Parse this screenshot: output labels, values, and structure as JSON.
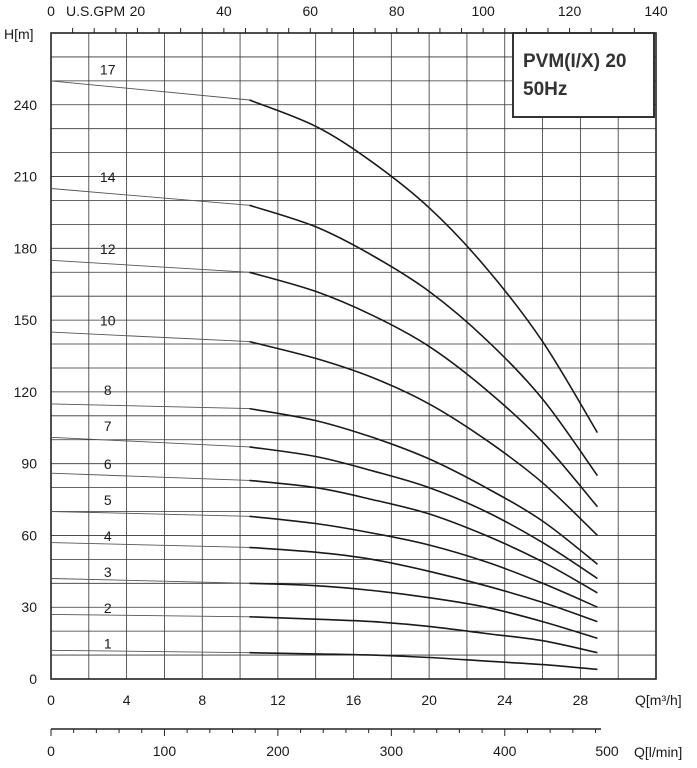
{
  "chart_data": {
    "type": "line",
    "title_box": {
      "line1": "PVM(I/X) 20",
      "line2": "50Hz"
    },
    "y_axis": {
      "label": "H[m]",
      "ticks": [
        0,
        30,
        60,
        90,
        120,
        150,
        180,
        210,
        240
      ],
      "range": [
        0,
        270
      ]
    },
    "x_axis": {
      "label": "Q[m³/h]",
      "ticks": [
        0,
        4,
        8,
        12,
        16,
        20,
        24,
        28
      ],
      "range": [
        0,
        32
      ]
    },
    "top_axis": {
      "label": "U.S.GPM",
      "ticks": [
        20,
        40,
        60,
        80,
        100,
        120,
        140
      ],
      "range": [
        0,
        140
      ]
    },
    "bottom_axis": {
      "label": "Q[l/min]",
      "ticks": [
        0,
        100,
        200,
        300,
        400,
        500
      ],
      "range": [
        0,
        533.3
      ]
    },
    "series": [
      {
        "name": "17",
        "thin": [
          [
            0,
            250
          ],
          [
            10.5,
            242
          ]
        ],
        "bold": [
          [
            10.5,
            242
          ],
          [
            14,
            231
          ],
          [
            17,
            216
          ],
          [
            20,
            197
          ],
          [
            23,
            172
          ],
          [
            26,
            141
          ],
          [
            28.9,
            103
          ]
        ]
      },
      {
        "name": "14",
        "thin": [
          [
            0,
            205
          ],
          [
            10.5,
            198
          ]
        ],
        "bold": [
          [
            10.5,
            198
          ],
          [
            14,
            189
          ],
          [
            17,
            177
          ],
          [
            20,
            162
          ],
          [
            23,
            142
          ],
          [
            26,
            117
          ],
          [
            28.9,
            85
          ]
        ]
      },
      {
        "name": "12",
        "thin": [
          [
            0,
            175
          ],
          [
            10.5,
            170
          ]
        ],
        "bold": [
          [
            10.5,
            170
          ],
          [
            14,
            162
          ],
          [
            17,
            152
          ],
          [
            20,
            139
          ],
          [
            23,
            121
          ],
          [
            26,
            99
          ],
          [
            28.9,
            72
          ]
        ]
      },
      {
        "name": "10",
        "thin": [
          [
            0,
            145
          ],
          [
            10.5,
            141
          ]
        ],
        "bold": [
          [
            10.5,
            141
          ],
          [
            14,
            134
          ],
          [
            17,
            126
          ],
          [
            20,
            115
          ],
          [
            23,
            100
          ],
          [
            26,
            82
          ],
          [
            28.9,
            60
          ]
        ]
      },
      {
        "name": "8",
        "thin": [
          [
            0,
            115
          ],
          [
            10.5,
            113
          ]
        ],
        "bold": [
          [
            10.5,
            113
          ],
          [
            14,
            108
          ],
          [
            17,
            101
          ],
          [
            20,
            92
          ],
          [
            23,
            80
          ],
          [
            26,
            66
          ],
          [
            28.9,
            48
          ]
        ]
      },
      {
        "name": "7",
        "thin": [
          [
            0,
            101
          ],
          [
            10.5,
            97
          ]
        ],
        "bold": [
          [
            10.5,
            97
          ],
          [
            14,
            93
          ],
          [
            17,
            87
          ],
          [
            20,
            80
          ],
          [
            23,
            70
          ],
          [
            26,
            57
          ],
          [
            28.9,
            42
          ]
        ]
      },
      {
        "name": "6",
        "thin": [
          [
            0,
            86
          ],
          [
            10.5,
            83
          ]
        ],
        "bold": [
          [
            10.5,
            83
          ],
          [
            14,
            80
          ],
          [
            17,
            75
          ],
          [
            20,
            69
          ],
          [
            23,
            60
          ],
          [
            26,
            49
          ],
          [
            28.9,
            36
          ]
        ]
      },
      {
        "name": "5",
        "thin": [
          [
            0,
            70
          ],
          [
            10.5,
            68
          ]
        ],
        "bold": [
          [
            10.5,
            68
          ],
          [
            14,
            65
          ],
          [
            17,
            61
          ],
          [
            20,
            56
          ],
          [
            23,
            49
          ],
          [
            26,
            40
          ],
          [
            28.9,
            30
          ]
        ]
      },
      {
        "name": "4",
        "thin": [
          [
            0,
            57
          ],
          [
            10.5,
            55
          ]
        ],
        "bold": [
          [
            10.5,
            55
          ],
          [
            14,
            53
          ],
          [
            17,
            50
          ],
          [
            20,
            45
          ],
          [
            23,
            39
          ],
          [
            26,
            32
          ],
          [
            28.9,
            24
          ]
        ]
      },
      {
        "name": "3",
        "thin": [
          [
            0,
            42
          ],
          [
            10.5,
            40
          ]
        ],
        "bold": [
          [
            10.5,
            40
          ],
          [
            14,
            39
          ],
          [
            17,
            37
          ],
          [
            20,
            34
          ],
          [
            23,
            30
          ],
          [
            26,
            24
          ],
          [
            28.9,
            17
          ]
        ]
      },
      {
        "name": "2",
        "thin": [
          [
            0,
            27
          ],
          [
            10.5,
            26
          ]
        ],
        "bold": [
          [
            10.5,
            26
          ],
          [
            14,
            25
          ],
          [
            17,
            24
          ],
          [
            20,
            22
          ],
          [
            23,
            19
          ],
          [
            26,
            16
          ],
          [
            28.9,
            11
          ]
        ]
      },
      {
        "name": "1",
        "thin": [
          [
            0,
            12
          ],
          [
            10.5,
            11
          ]
        ],
        "bold": [
          [
            10.5,
            11
          ],
          [
            14,
            10.5
          ],
          [
            17,
            10
          ],
          [
            20,
            9
          ],
          [
            23,
            7.5
          ],
          [
            26,
            6
          ],
          [
            28.9,
            4
          ]
        ]
      }
    ],
    "curve_labels": [
      {
        "text": "17",
        "x": 3.0,
        "y": 251
      },
      {
        "text": "14",
        "x": 3.0,
        "y": 206
      },
      {
        "text": "12",
        "x": 3.0,
        "y": 176
      },
      {
        "text": "10",
        "x": 3.0,
        "y": 146
      },
      {
        "text": "8",
        "x": 3.0,
        "y": 117
      },
      {
        "text": "7",
        "x": 3.0,
        "y": 102
      },
      {
        "text": "6",
        "x": 3.0,
        "y": 86
      },
      {
        "text": "5",
        "x": 3.0,
        "y": 71
      },
      {
        "text": "4",
        "x": 3.0,
        "y": 56
      },
      {
        "text": "3",
        "x": 3.0,
        "y": 41
      },
      {
        "text": "2",
        "x": 3.0,
        "y": 26
      },
      {
        "text": "1",
        "x": 3.0,
        "y": 11
      }
    ],
    "grid": true,
    "colors": {
      "grid": "#333333",
      "curve": "#1a1a1a",
      "background": "#ffffff"
    }
  }
}
